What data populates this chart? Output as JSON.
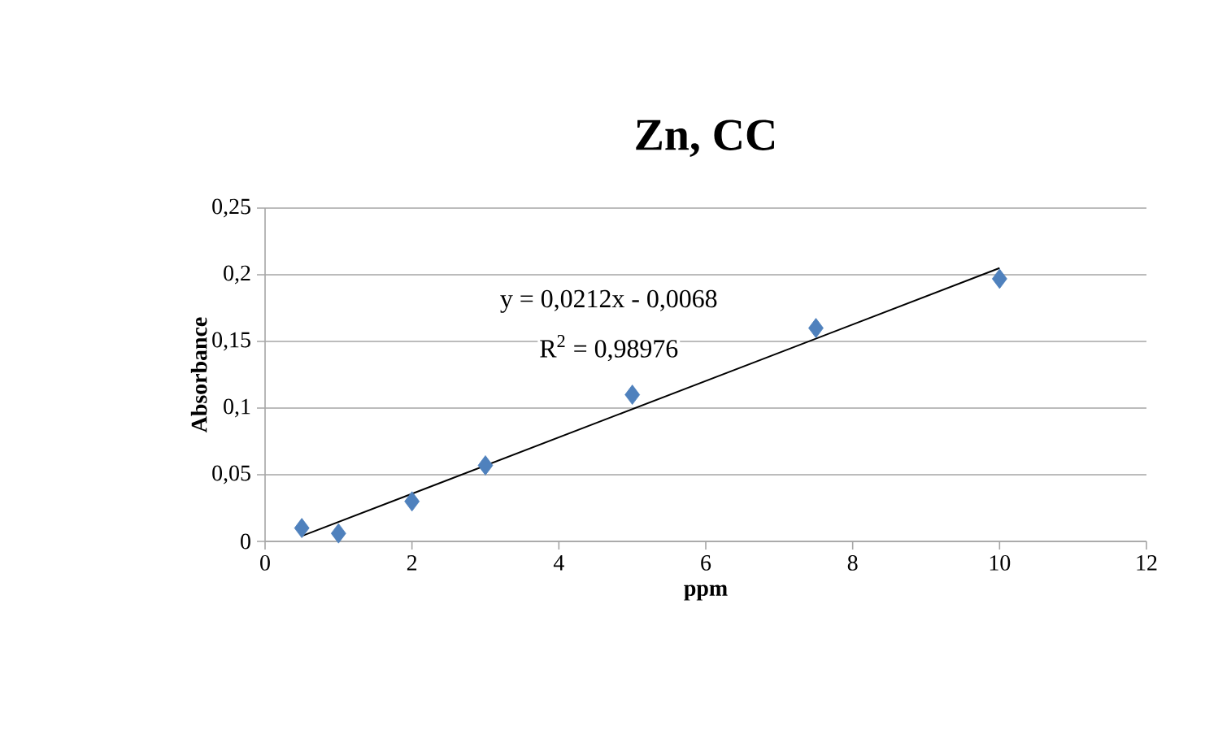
{
  "chart_data": {
    "type": "scatter",
    "title": "Zn, CC",
    "xlabel": "ppm",
    "ylabel": "Absorbance",
    "xlim": [
      0,
      12
    ],
    "xticks": [
      0,
      2,
      4,
      6,
      8,
      10,
      12
    ],
    "ylim": [
      0,
      0.25
    ],
    "yticks": [
      {
        "value": 0,
        "label": "0"
      },
      {
        "value": 0.05,
        "label": "0,05"
      },
      {
        "value": 0.1,
        "label": "0,1"
      },
      {
        "value": 0.15,
        "label": "0,15"
      },
      {
        "value": 0.2,
        "label": "0,2"
      },
      {
        "value": 0.25,
        "label": "0,25"
      }
    ],
    "grid": "y",
    "marker": "diamond",
    "series": [
      {
        "color": "#4f81bd",
        "x": [
          0.5,
          1,
          2,
          3,
          5,
          7.5,
          10
        ],
        "values": [
          0.01,
          0.006,
          0.03,
          0.057,
          0.11,
          0.16,
          0.197
        ]
      },
      {
        "type": "line",
        "marker": "none",
        "color": "#000000",
        "x": [
          0.5,
          10
        ],
        "values": [
          0.004,
          0.205
        ]
      }
    ],
    "annotations": [
      "y = 0,0212x - 0,0068",
      "R$^{2}$ = 0,98976"
    ]
  }
}
